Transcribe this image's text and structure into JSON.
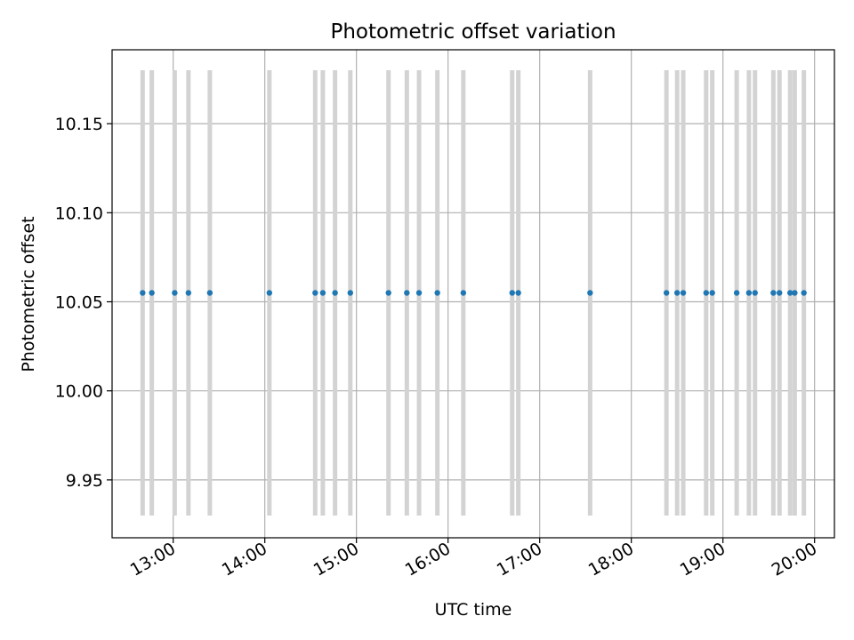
{
  "chart_data": {
    "type": "scatter",
    "title": "Photometric offset variation",
    "xlabel": "UTC time",
    "ylabel": "Photometric offset",
    "xlim": [
      "12:20",
      "20:13"
    ],
    "ylim": [
      9.9175,
      10.1915
    ],
    "grid": true,
    "x_ticks": [
      "13:00",
      "14:00",
      "15:00",
      "16:00",
      "17:00",
      "18:00",
      "19:00",
      "20:00"
    ],
    "y_ticks": [
      "9.95",
      "10.00",
      "10.05",
      "10.10",
      "10.15"
    ],
    "errorbar": {
      "low": 9.93,
      "high": 10.18
    },
    "x": [
      "12:40",
      "12:46",
      "13:01",
      "13:10",
      "13:24",
      "14:03",
      "14:33",
      "14:38",
      "14:46",
      "14:56",
      "15:21",
      "15:33",
      "15:41",
      "15:53",
      "16:10",
      "16:42",
      "16:46",
      "17:33",
      "18:23",
      "18:30",
      "18:34",
      "18:49",
      "18:53",
      "19:09",
      "19:17",
      "19:21",
      "19:33",
      "19:37",
      "19:44",
      "19:47",
      "19:53"
    ],
    "y": [
      10.055,
      10.055,
      10.055,
      10.055,
      10.055,
      10.055,
      10.055,
      10.055,
      10.055,
      10.055,
      10.055,
      10.055,
      10.055,
      10.055,
      10.055,
      10.055,
      10.055,
      10.055,
      10.055,
      10.055,
      10.055,
      10.055,
      10.055,
      10.055,
      10.055,
      10.055,
      10.055,
      10.055,
      10.055,
      10.055,
      10.055
    ],
    "colors": {
      "points": "#1f77b4",
      "errorbars": "#d3d3d3",
      "grid": "#b0b0b0"
    }
  }
}
